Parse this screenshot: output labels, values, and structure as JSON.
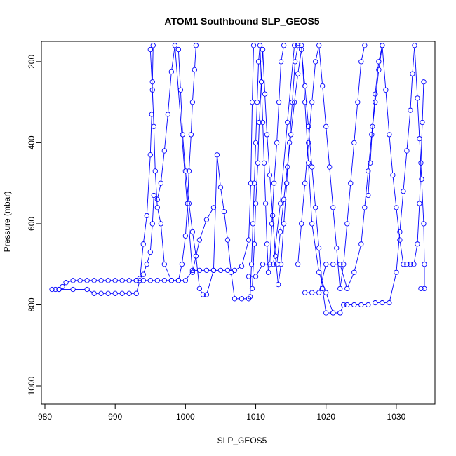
{
  "chart_data": {
    "type": "scatter",
    "title": "ATOM1 Southbound SLP_GEOS5",
    "xlabel": "SLP_GEOS5",
    "ylabel": "Pressure (mbar)",
    "xlim": [
      979.5,
      1035.5
    ],
    "ylim": [
      1045,
      150
    ],
    "y_inverted": true,
    "x_ticks": [
      980,
      990,
      1000,
      1010,
      1020,
      1030
    ],
    "y_ticks": [
      200,
      400,
      600,
      800,
      1000
    ],
    "grid": false,
    "legend": "none",
    "marker": "open-circle",
    "series_color": "#0000ff",
    "series": [
      {
        "points": [
          [
            981,
            762
          ],
          [
            981.5,
            762
          ],
          [
            982,
            762
          ],
          [
            982.5,
            755
          ],
          [
            983,
            745
          ],
          [
            984,
            740
          ],
          [
            985,
            740
          ],
          [
            986,
            740
          ],
          [
            987,
            740
          ],
          [
            988,
            740
          ],
          [
            989,
            740
          ],
          [
            990,
            740
          ],
          [
            991,
            740
          ],
          [
            992,
            740
          ],
          [
            993,
            740
          ],
          [
            993.5,
            735
          ],
          [
            994,
            725
          ],
          [
            994.5,
            700
          ],
          [
            995,
            670
          ],
          [
            995.3,
            600
          ],
          [
            995.5,
            530
          ]
        ]
      },
      {
        "points": [
          [
            993,
            740
          ],
          [
            994,
            740
          ],
          [
            995,
            740
          ],
          [
            996,
            740
          ],
          [
            997,
            740
          ],
          [
            998,
            740
          ],
          [
            999,
            740
          ],
          [
            1000,
            740
          ],
          [
            1001,
            715
          ],
          [
            1002,
            715
          ],
          [
            1003,
            715
          ],
          [
            1004,
            715
          ],
          [
            1005,
            715
          ],
          [
            1006,
            715
          ],
          [
            1007,
            715
          ],
          [
            1008,
            705
          ],
          [
            1009,
            640
          ],
          [
            1009.3,
            500
          ],
          [
            1009.5,
            300
          ],
          [
            1009.7,
            160
          ]
        ]
      },
      {
        "points": [
          [
            982,
            762
          ],
          [
            984,
            762
          ],
          [
            986,
            762
          ],
          [
            987,
            772
          ],
          [
            988,
            772
          ],
          [
            989,
            772
          ],
          [
            990,
            772
          ],
          [
            991,
            772
          ],
          [
            992,
            772
          ],
          [
            993,
            772
          ],
          [
            993.5,
            740
          ],
          [
            994,
            650
          ],
          [
            994.5,
            580
          ],
          [
            995,
            430
          ],
          [
            995.2,
            330
          ],
          [
            995.3,
            250
          ],
          [
            995.4,
            160
          ]
        ]
      },
      {
        "points": [
          [
            995,
            170
          ],
          [
            995.3,
            270
          ],
          [
            995.5,
            360
          ],
          [
            995.7,
            470
          ],
          [
            996,
            560
          ],
          [
            996.5,
            600
          ],
          [
            997,
            700
          ],
          [
            998,
            740
          ],
          [
            999,
            740
          ],
          [
            999.5,
            700
          ],
          [
            1000,
            630
          ],
          [
            1000.3,
            550
          ],
          [
            1000.5,
            470
          ],
          [
            1000.8,
            380
          ],
          [
            1001,
            300
          ],
          [
            1001.3,
            220
          ],
          [
            1001.5,
            160
          ]
        ]
      },
      {
        "points": [
          [
            999,
            170
          ],
          [
            999.3,
            270
          ],
          [
            999.6,
            380
          ],
          [
            1000,
            470
          ],
          [
            1000.5,
            550
          ],
          [
            1001,
            620
          ],
          [
            1001.5,
            680
          ],
          [
            1002,
            760
          ],
          [
            1002.5,
            775
          ],
          [
            1003,
            775
          ],
          [
            1004,
            715
          ],
          [
            1004.5,
            430
          ],
          [
            1005,
            510
          ],
          [
            1005.5,
            570
          ],
          [
            1006,
            640
          ],
          [
            1006.5,
            720
          ],
          [
            1007,
            785
          ],
          [
            1008,
            785
          ],
          [
            1009,
            785
          ]
        ]
      },
      {
        "points": [
          [
            996,
            540
          ],
          [
            996.5,
            500
          ],
          [
            997,
            420
          ],
          [
            997.5,
            330
          ],
          [
            998,
            225
          ],
          [
            998.5,
            160
          ],
          [
            1001,
            720
          ],
          [
            1002,
            640
          ],
          [
            1003,
            590
          ],
          [
            1004,
            560
          ]
        ]
      },
      {
        "points": [
          [
            1009.2,
            780
          ],
          [
            1009.4,
            700
          ],
          [
            1009.6,
            600
          ],
          [
            1009.8,
            500
          ],
          [
            1010,
            400
          ],
          [
            1010.2,
            300
          ],
          [
            1010.4,
            200
          ],
          [
            1010.6,
            160
          ],
          [
            1010.8,
            250
          ],
          [
            1011,
            350
          ],
          [
            1011.2,
            450
          ],
          [
            1011.4,
            550
          ],
          [
            1011.6,
            650
          ],
          [
            1011.8,
            720
          ],
          [
            1012,
            700
          ],
          [
            1012.3,
            600
          ],
          [
            1012.6,
            500
          ],
          [
            1013,
            400
          ],
          [
            1013.3,
            300
          ],
          [
            1013.6,
            200
          ],
          [
            1014,
            160
          ]
        ]
      },
      {
        "points": [
          [
            1009.5,
            760
          ],
          [
            1009.8,
            650
          ],
          [
            1010,
            550
          ],
          [
            1010.3,
            450
          ],
          [
            1010.5,
            350
          ],
          [
            1010.8,
            250
          ],
          [
            1011,
            170
          ],
          [
            1011.3,
            280
          ],
          [
            1011.6,
            380
          ],
          [
            1012,
            480
          ],
          [
            1012.4,
            580
          ],
          [
            1012.8,
            680
          ],
          [
            1013.2,
            750
          ],
          [
            1013.6,
            700
          ],
          [
            1014,
            600
          ],
          [
            1014.4,
            500
          ],
          [
            1014.8,
            400
          ],
          [
            1015.2,
            300
          ],
          [
            1015.6,
            200
          ],
          [
            1016,
            160
          ]
        ]
      },
      {
        "points": [
          [
            1013,
            700
          ],
          [
            1013.5,
            620
          ],
          [
            1014,
            540
          ],
          [
            1014.5,
            460
          ],
          [
            1015,
            380
          ],
          [
            1015.5,
            300
          ],
          [
            1016,
            230
          ],
          [
            1016.5,
            170
          ],
          [
            1017,
            260
          ],
          [
            1017.5,
            360
          ],
          [
            1018,
            460
          ],
          [
            1018.5,
            560
          ],
          [
            1019,
            660
          ],
          [
            1019.5,
            760
          ],
          [
            1020,
            820
          ],
          [
            1021,
            820
          ],
          [
            1022,
            820
          ],
          [
            1022.5,
            800
          ],
          [
            1023,
            800
          ],
          [
            1024,
            800
          ],
          [
            1025,
            800
          ],
          [
            1026,
            800
          ]
        ]
      },
      {
        "points": [
          [
            1016,
            700
          ],
          [
            1016.5,
            600
          ],
          [
            1017,
            500
          ],
          [
            1017.5,
            400
          ],
          [
            1018,
            300
          ],
          [
            1018.5,
            200
          ],
          [
            1019,
            160
          ],
          [
            1019.5,
            260
          ],
          [
            1020,
            360
          ],
          [
            1020.5,
            460
          ],
          [
            1021,
            560
          ],
          [
            1021.5,
            660
          ],
          [
            1022,
            760
          ],
          [
            1022.5,
            700
          ],
          [
            1023,
            600
          ],
          [
            1023.5,
            500
          ],
          [
            1024,
            400
          ],
          [
            1024.5,
            300
          ],
          [
            1025,
            200
          ],
          [
            1025.5,
            160
          ]
        ]
      },
      {
        "points": [
          [
            1017,
            770
          ],
          [
            1018,
            770
          ],
          [
            1019,
            770
          ],
          [
            1020,
            700
          ],
          [
            1021,
            700
          ],
          [
            1022,
            700
          ],
          [
            1023,
            760
          ],
          [
            1024,
            720
          ],
          [
            1025,
            650
          ],
          [
            1025.5,
            560
          ],
          [
            1026,
            470
          ],
          [
            1026.5,
            380
          ],
          [
            1027,
            300
          ],
          [
            1027.5,
            220
          ],
          [
            1028,
            160
          ]
        ]
      },
      {
        "points": [
          [
            1026,
            530
          ],
          [
            1026.3,
            450
          ],
          [
            1026.6,
            360
          ],
          [
            1027,
            280
          ],
          [
            1027.5,
            200
          ],
          [
            1028,
            160
          ],
          [
            1028.5,
            270
          ],
          [
            1029,
            380
          ],
          [
            1029.5,
            480
          ],
          [
            1030,
            560
          ],
          [
            1030.5,
            640
          ],
          [
            1031,
            700
          ],
          [
            1031.5,
            700
          ],
          [
            1032,
            700
          ],
          [
            1032.5,
            700
          ],
          [
            1033,
            650
          ],
          [
            1033.3,
            550
          ],
          [
            1033.5,
            450
          ],
          [
            1033.7,
            350
          ],
          [
            1033.9,
            250
          ]
        ]
      },
      {
        "points": [
          [
            1027,
            795
          ],
          [
            1028,
            795
          ],
          [
            1029,
            795
          ],
          [
            1030,
            720
          ],
          [
            1030.5,
            620
          ],
          [
            1031,
            520
          ],
          [
            1031.5,
            420
          ],
          [
            1032,
            320
          ],
          [
            1032.3,
            230
          ],
          [
            1032.6,
            160
          ],
          [
            1033,
            290
          ],
          [
            1033.3,
            390
          ],
          [
            1033.6,
            490
          ],
          [
            1033.9,
            600
          ],
          [
            1034,
            700
          ],
          [
            1034,
            760
          ],
          [
            1033.5,
            760
          ]
        ]
      },
      {
        "points": [
          [
            1022,
            820
          ],
          [
            1021,
            820
          ],
          [
            1020,
            770
          ],
          [
            1019,
            720
          ],
          [
            1018,
            600
          ],
          [
            1017.5,
            450
          ],
          [
            1017,
            300
          ],
          [
            1016.5,
            160
          ],
          [
            1015.5,
            160
          ],
          [
            1014.5,
            350
          ],
          [
            1013.5,
            550
          ],
          [
            1012.5,
            700
          ],
          [
            1011,
            700
          ],
          [
            1010,
            730
          ],
          [
            1009,
            730
          ]
        ]
      }
    ]
  }
}
